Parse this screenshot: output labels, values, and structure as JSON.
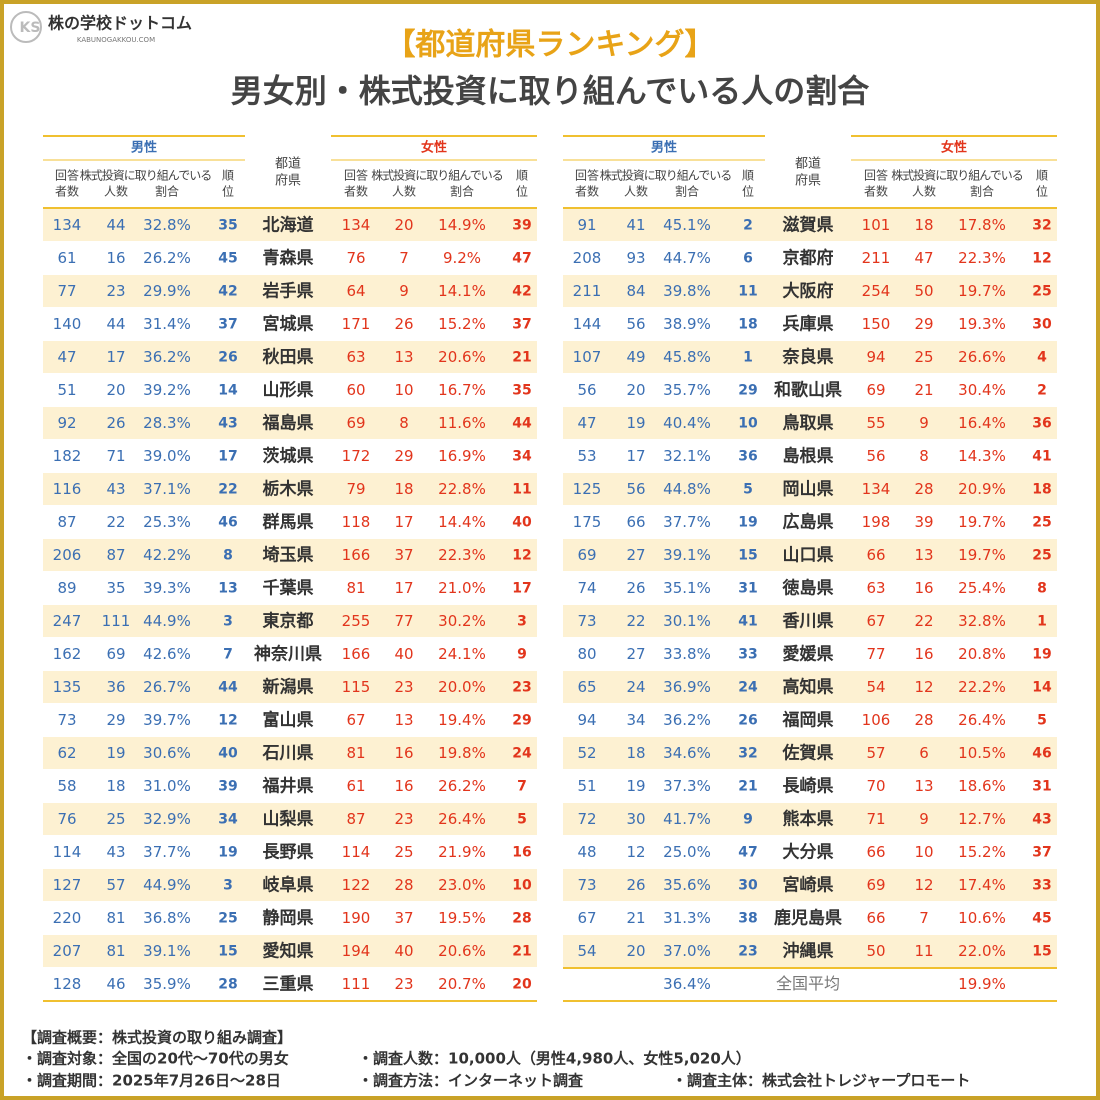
{
  "logo": {
    "name": "株の学校ドットコム",
    "url": "KABUNOGAKKOU.COM"
  },
  "title": {
    "line1": "【都道府県ランキング】",
    "line2": "男女別・株式投資に取り組んでいる人の割合"
  },
  "header": {
    "male": "男性",
    "female": "女性",
    "respondents": [
      "回答",
      "者数"
    ],
    "engaged": "株式投資に取り組んでいる",
    "count": "人数",
    "ratio": "割合",
    "rank": [
      "順",
      "位"
    ],
    "prefecture": [
      "都道",
      "府県"
    ]
  },
  "left": {
    "rows": [
      [
        134,
        44,
        "32.8%",
        35,
        "北海道",
        134,
        20,
        "14.9%",
        39
      ],
      [
        61,
        16,
        "26.2%",
        45,
        "青森県",
        76,
        7,
        "9.2%",
        47
      ],
      [
        77,
        23,
        "29.9%",
        42,
        "岩手県",
        64,
        9,
        "14.1%",
        42
      ],
      [
        140,
        44,
        "31.4%",
        37,
        "宮城県",
        171,
        26,
        "15.2%",
        37
      ],
      [
        47,
        17,
        "36.2%",
        26,
        "秋田県",
        63,
        13,
        "20.6%",
        21
      ],
      [
        51,
        20,
        "39.2%",
        14,
        "山形県",
        60,
        10,
        "16.7%",
        35
      ],
      [
        92,
        26,
        "28.3%",
        43,
        "福島県",
        69,
        8,
        "11.6%",
        44
      ],
      [
        182,
        71,
        "39.0%",
        17,
        "茨城県",
        172,
        29,
        "16.9%",
        34
      ],
      [
        116,
        43,
        "37.1%",
        22,
        "栃木県",
        79,
        18,
        "22.8%",
        11
      ],
      [
        87,
        22,
        "25.3%",
        46,
        "群馬県",
        118,
        17,
        "14.4%",
        40
      ],
      [
        206,
        87,
        "42.2%",
        8,
        "埼玉県",
        166,
        37,
        "22.3%",
        12
      ],
      [
        89,
        35,
        "39.3%",
        13,
        "千葉県",
        81,
        17,
        "21.0%",
        17
      ],
      [
        247,
        111,
        "44.9%",
        3,
        "東京都",
        255,
        77,
        "30.2%",
        3
      ],
      [
        162,
        69,
        "42.6%",
        7,
        "神奈川県",
        166,
        40,
        "24.1%",
        9
      ],
      [
        135,
        36,
        "26.7%",
        44,
        "新潟県",
        115,
        23,
        "20.0%",
        23
      ],
      [
        73,
        29,
        "39.7%",
        12,
        "富山県",
        67,
        13,
        "19.4%",
        29
      ],
      [
        62,
        19,
        "30.6%",
        40,
        "石川県",
        81,
        16,
        "19.8%",
        24
      ],
      [
        58,
        18,
        "31.0%",
        39,
        "福井県",
        61,
        16,
        "26.2%",
        7
      ],
      [
        76,
        25,
        "32.9%",
        34,
        "山梨県",
        87,
        23,
        "26.4%",
        5
      ],
      [
        114,
        43,
        "37.7%",
        19,
        "長野県",
        114,
        25,
        "21.9%",
        16
      ],
      [
        127,
        57,
        "44.9%",
        3,
        "岐阜県",
        122,
        28,
        "23.0%",
        10
      ],
      [
        220,
        81,
        "36.8%",
        25,
        "静岡県",
        190,
        37,
        "19.5%",
        28
      ],
      [
        207,
        81,
        "39.1%",
        15,
        "愛知県",
        194,
        40,
        "20.6%",
        21
      ],
      [
        128,
        46,
        "35.9%",
        28,
        "三重県",
        111,
        23,
        "20.7%",
        20
      ]
    ]
  },
  "right": {
    "rows": [
      [
        91,
        41,
        "45.1%",
        2,
        "滋賀県",
        101,
        18,
        "17.8%",
        32
      ],
      [
        208,
        93,
        "44.7%",
        6,
        "京都府",
        211,
        47,
        "22.3%",
        12
      ],
      [
        211,
        84,
        "39.8%",
        11,
        "大阪府",
        254,
        50,
        "19.7%",
        25
      ],
      [
        144,
        56,
        "38.9%",
        18,
        "兵庫県",
        150,
        29,
        "19.3%",
        30
      ],
      [
        107,
        49,
        "45.8%",
        1,
        "奈良県",
        94,
        25,
        "26.6%",
        4
      ],
      [
        56,
        20,
        "35.7%",
        29,
        "和歌山県",
        69,
        21,
        "30.4%",
        2
      ],
      [
        47,
        19,
        "40.4%",
        10,
        "鳥取県",
        55,
        9,
        "16.4%",
        36
      ],
      [
        53,
        17,
        "32.1%",
        36,
        "島根県",
        56,
        8,
        "14.3%",
        41
      ],
      [
        125,
        56,
        "44.8%",
        5,
        "岡山県",
        134,
        28,
        "20.9%",
        18
      ],
      [
        175,
        66,
        "37.7%",
        19,
        "広島県",
        198,
        39,
        "19.7%",
        25
      ],
      [
        69,
        27,
        "39.1%",
        15,
        "山口県",
        66,
        13,
        "19.7%",
        25
      ],
      [
        74,
        26,
        "35.1%",
        31,
        "徳島県",
        63,
        16,
        "25.4%",
        8
      ],
      [
        73,
        22,
        "30.1%",
        41,
        "香川県",
        67,
        22,
        "32.8%",
        1
      ],
      [
        80,
        27,
        "33.8%",
        33,
        "愛媛県",
        77,
        16,
        "20.8%",
        19
      ],
      [
        65,
        24,
        "36.9%",
        24,
        "高知県",
        54,
        12,
        "22.2%",
        14
      ],
      [
        94,
        34,
        "36.2%",
        26,
        "福岡県",
        106,
        28,
        "26.4%",
        5
      ],
      [
        52,
        18,
        "34.6%",
        32,
        "佐賀県",
        57,
        6,
        "10.5%",
        46
      ],
      [
        51,
        19,
        "37.3%",
        21,
        "長崎県",
        70,
        13,
        "18.6%",
        31
      ],
      [
        72,
        30,
        "41.7%",
        9,
        "熊本県",
        71,
        9,
        "12.7%",
        43
      ],
      [
        48,
        12,
        "25.0%",
        47,
        "大分県",
        66,
        10,
        "15.2%",
        37
      ],
      [
        73,
        26,
        "35.6%",
        30,
        "宮崎県",
        69,
        12,
        "17.4%",
        33
      ],
      [
        67,
        21,
        "31.3%",
        38,
        "鹿児島県",
        66,
        7,
        "10.6%",
        45
      ],
      [
        54,
        20,
        "37.0%",
        23,
        "沖縄県",
        50,
        11,
        "22.0%",
        15
      ]
    ],
    "average": {
      "male": "36.4%",
      "label": "全国平均",
      "female": "19.9%"
    }
  },
  "notes": {
    "heading": "【調査概要：株式投資の取り組み調査】",
    "target": "・調査対象：全国の20代～70代の男女",
    "size": "・調査人数：10,000人（男性4,980人、女性5,020人）",
    "period": "・調査期間：2025年7月26日～28日",
    "method": "・調査方法：インターネット調査",
    "sponsor": "・調査主体：株式会社トレジャープロモート"
  }
}
